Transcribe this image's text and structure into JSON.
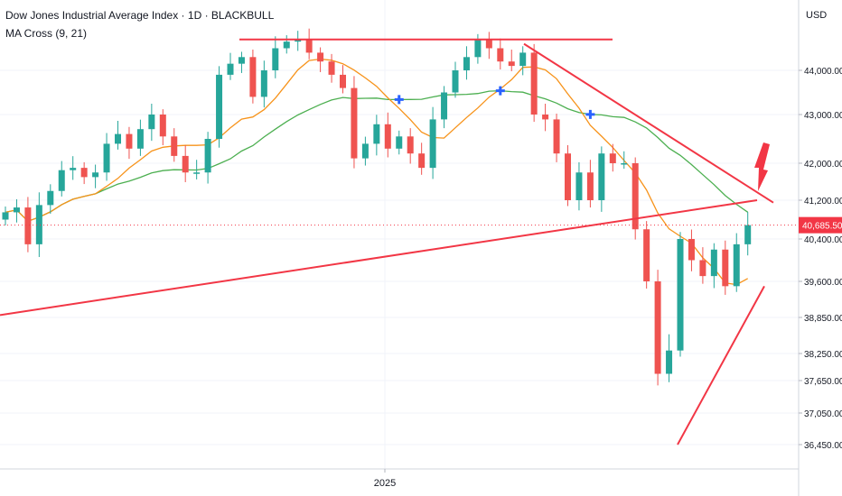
{
  "header": {
    "title": "Dow Jones Industrial Average Index · 1D · BLACKBULL",
    "indicator": "MA Cross (9, 21)",
    "currency": "USD"
  },
  "price_axis": {
    "ticks": [
      "44,000.00",
      "43,000.00",
      "42,000.00",
      "41,200.00",
      "40,400.00",
      "39,600.00",
      "38,850.00",
      "38,250.00",
      "37,650.00",
      "37,050.00",
      "36,450.00"
    ],
    "last_price": "40,685.50"
  },
  "time_axis": {
    "label": "2025"
  },
  "colors": {
    "up": "#26a69a",
    "down": "#ef5350",
    "ma_fast": "#f7931a",
    "ma_slow": "#4caf50",
    "trendline": "#f23645",
    "cross_marker": "#2962ff",
    "price_badge": "#f23645"
  },
  "chart_data": {
    "type": "candlestick",
    "title": "Dow Jones Industrial Average Index · 1D · BLACKBULL",
    "y_unit": "USD",
    "x_label": "2025",
    "indicator": "MA Cross (9, 21)",
    "last_price": 40685.5,
    "close_approx": [
      40950,
      41050,
      40300,
      41100,
      41400,
      41850,
      41900,
      41700,
      41800,
      42400,
      42600,
      42300,
      42700,
      43000,
      42550,
      42150,
      41800,
      41800,
      42500,
      43900,
      44150,
      44300,
      43400,
      44000,
      44500,
      44650,
      44700,
      44400,
      44200,
      43900,
      43600,
      42100,
      42400,
      42800,
      42300,
      42550,
      42200,
      41900,
      42900,
      43500,
      44000,
      44300,
      44700,
      44500,
      44200,
      44100,
      44400,
      43000,
      42900,
      42200,
      41200,
      41800,
      41200,
      42200,
      42000,
      42000,
      40600,
      39600,
      37800,
      38300,
      40400,
      40000,
      39700,
      40200,
      39500,
      40300,
      40685.5
    ],
    "trendlines": [
      {
        "name": "resistance-top",
        "from": 44700,
        "to": 44700
      },
      {
        "name": "descending-resistance",
        "from": 44600,
        "to": 41150
      },
      {
        "name": "rising-support",
        "from": 38900,
        "to": 41200
      },
      {
        "name": "recovery-support",
        "from": 36450,
        "to": 39500
      }
    ]
  }
}
